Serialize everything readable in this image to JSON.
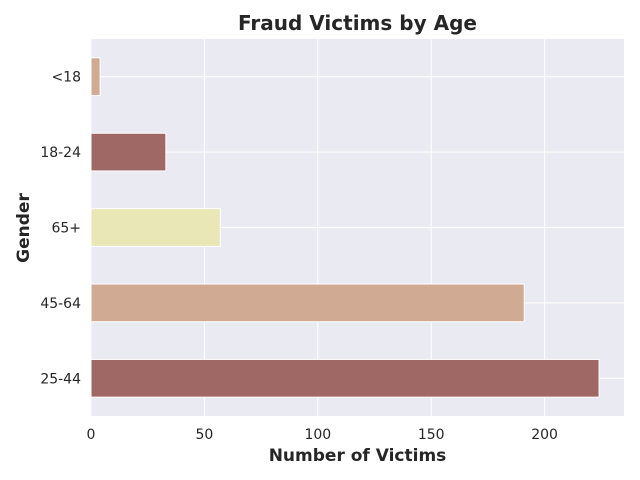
{
  "chart_data": {
    "type": "bar",
    "orientation": "horizontal",
    "title": "Fraud Victims by Age",
    "xlabel": "Number of Victims",
    "ylabel": "Gender",
    "categories": [
      "25-44",
      "45-64",
      "65+",
      "18-24",
      "<18"
    ],
    "values": [
      224,
      191,
      57,
      33,
      4
    ],
    "bar_colors": [
      "#a06865",
      "#d0aa92",
      "#e8e7b5",
      "#a06865",
      "#d0aa92"
    ],
    "xlim": [
      0,
      235
    ],
    "xticks": [
      0,
      50,
      100,
      150,
      200
    ],
    "grid": true,
    "background": "#eaeaf2"
  }
}
